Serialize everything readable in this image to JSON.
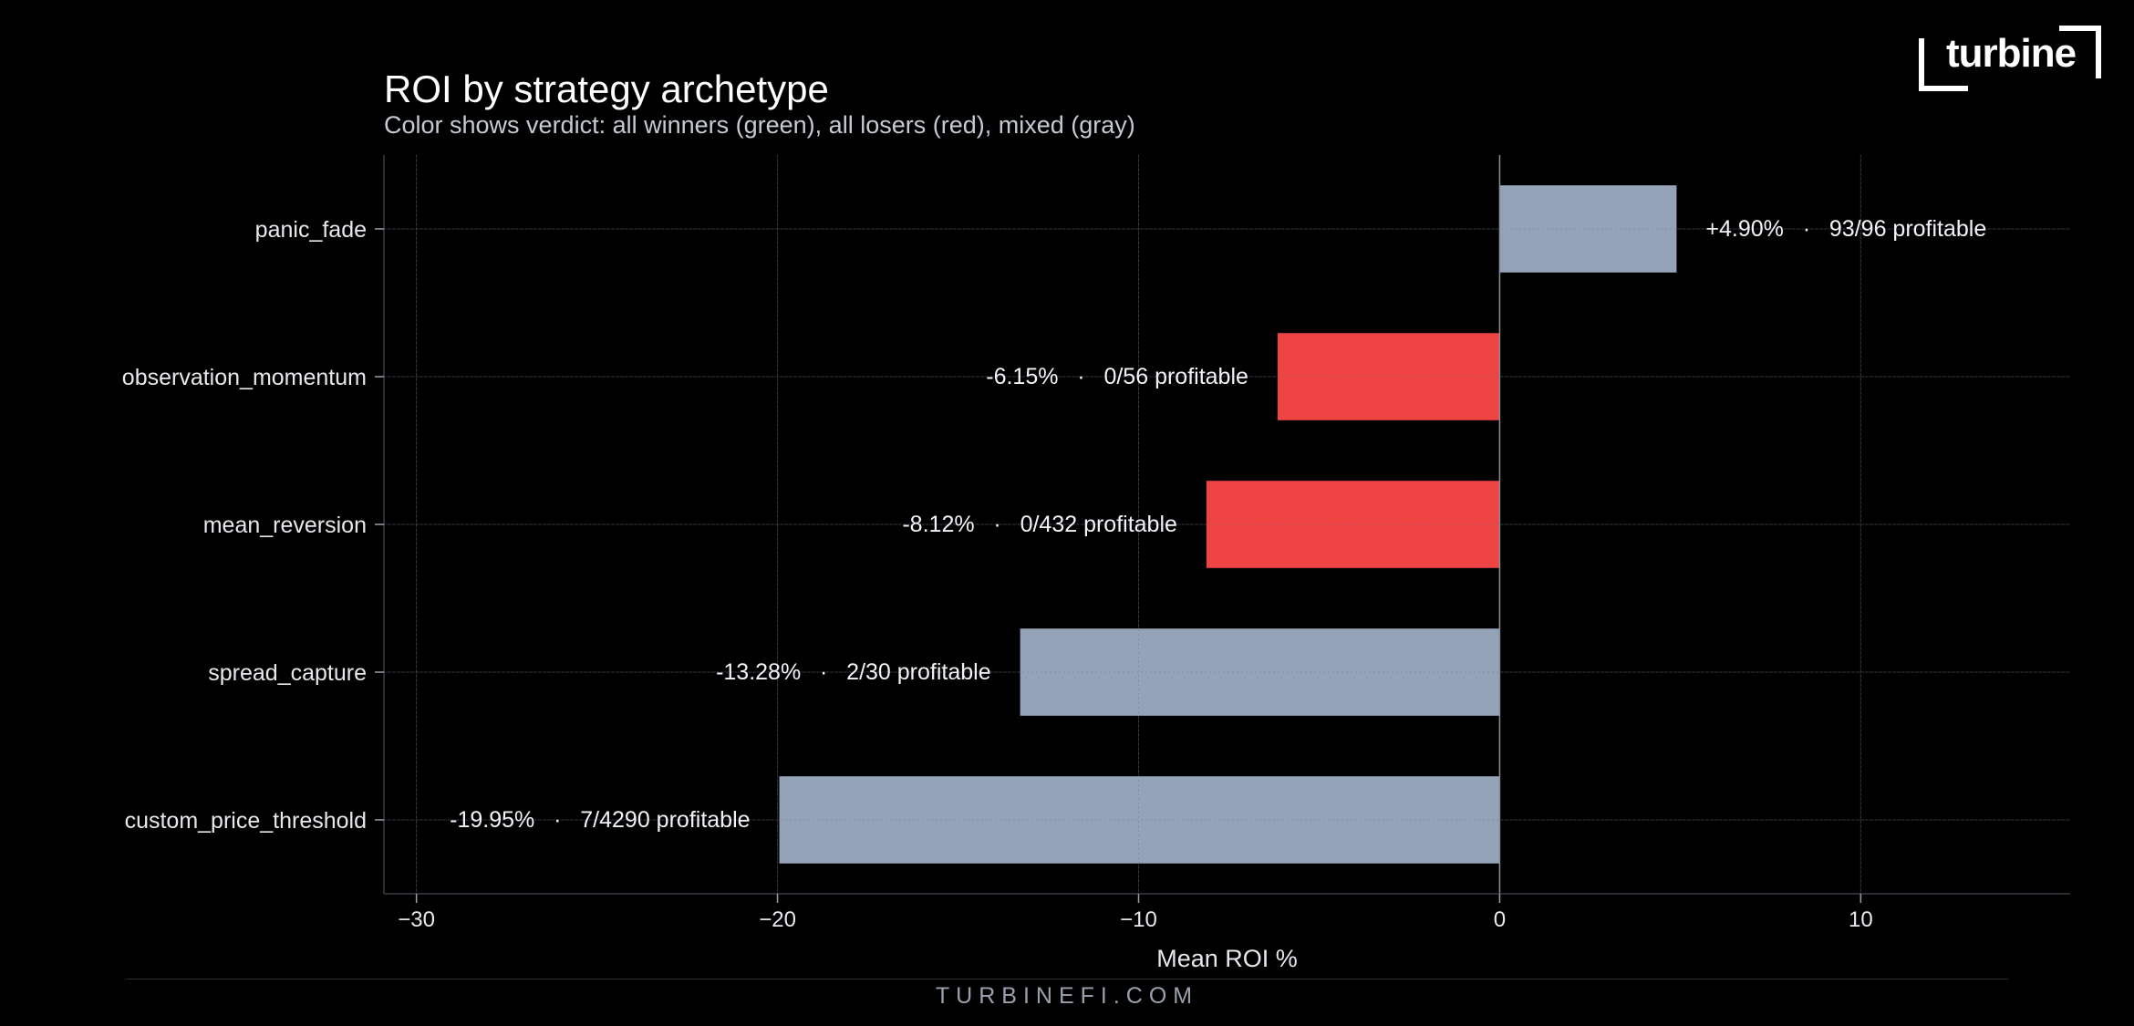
{
  "brand": {
    "logo_text": "turbine",
    "footer_url": "TURBINEFI.COM"
  },
  "chart_data": {
    "type": "bar",
    "orientation": "horizontal",
    "title": "ROI by strategy archetype",
    "subtitle": "Color shows verdict: all winners (green), all losers (red), mixed (gray)",
    "xlabel": "Mean ROI %",
    "ylabel": "",
    "xlim": [
      -30.9,
      15.8
    ],
    "xticks": [
      -30,
      -20,
      -10,
      0,
      10
    ],
    "xtick_labels": [
      "−30",
      "−20",
      "−10",
      "0",
      "10"
    ],
    "grid": true,
    "colors": {
      "winner": "#22c55e",
      "loser": "#ef4444",
      "mixed": "#94a3b8"
    },
    "categories": [
      "panic_fade",
      "observation_momentum",
      "mean_reversion",
      "spread_capture",
      "custom_price_threshold"
    ],
    "values": [
      4.9,
      -6.15,
      -8.12,
      -13.28,
      -19.95
    ],
    "verdicts": [
      "mixed",
      "loser",
      "loser",
      "mixed",
      "mixed"
    ],
    "data_labels": [
      "+4.90%   ·   93/96 profitable",
      "-6.15%   ·   0/56 profitable",
      "-8.12%   ·   0/432 profitable",
      "-13.28%   ·   2/30 profitable",
      "-19.95%   ·   7/4290 profitable"
    ]
  }
}
